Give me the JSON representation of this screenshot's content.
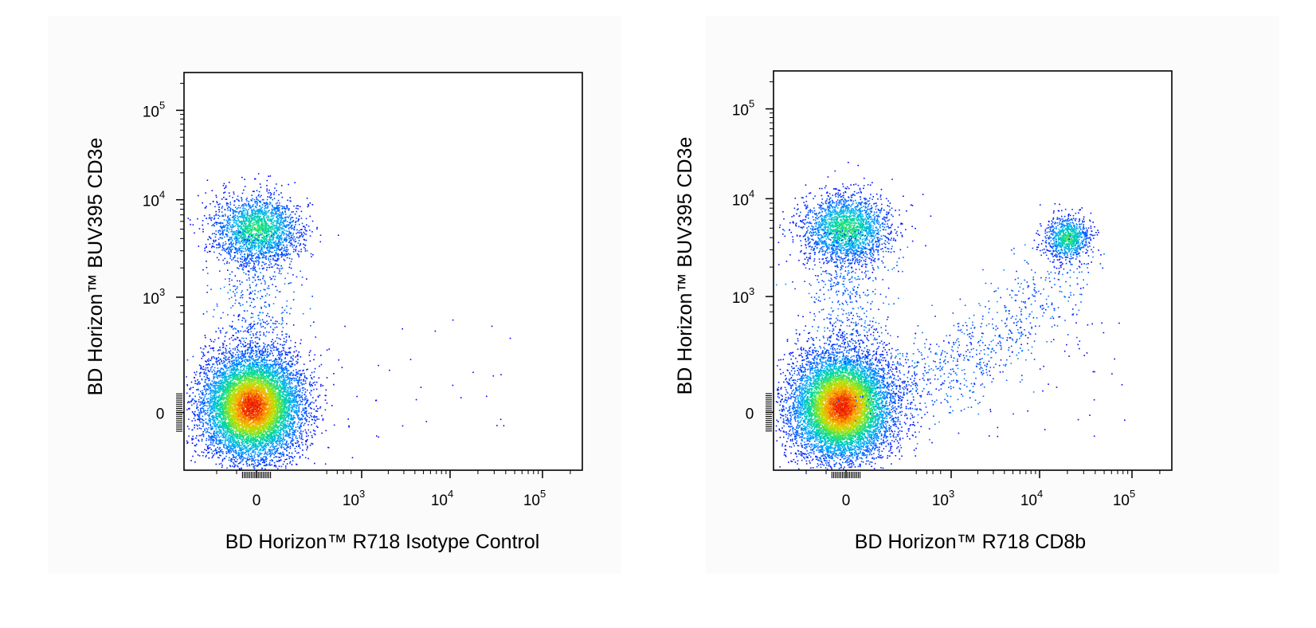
{
  "chart_data": [
    {
      "type": "scatter",
      "title": "",
      "xlabel": "BD Horizon™ R718 Isotype Control",
      "ylabel": "BD Horizon™ BUV395 CD3e",
      "x_scale": "biexponential",
      "y_scale": "biexponential",
      "xlim": [
        -300,
        200000
      ],
      "ylim": [
        -200,
        200000
      ],
      "x_ticks": [
        {
          "base": "0",
          "exp": ""
        },
        {
          "base": "10",
          "exp": "3"
        },
        {
          "base": "10",
          "exp": "4"
        },
        {
          "base": "10",
          "exp": "5"
        }
      ],
      "y_ticks": [
        {
          "base": "0",
          "exp": ""
        },
        {
          "base": "10",
          "exp": "3"
        },
        {
          "base": "10",
          "exp": "4"
        },
        {
          "base": "10",
          "exp": "5"
        }
      ],
      "grid": false,
      "colormap": "density (blue-green-yellow-red)",
      "populations": [
        {
          "x_center": 0,
          "y_center": 0,
          "relative_density": "high"
        },
        {
          "x_center": 0,
          "y_center": 5000,
          "relative_density": "medium"
        }
      ]
    },
    {
      "type": "scatter",
      "title": "",
      "xlabel": "BD Horizon™ R718 CD8b",
      "ylabel": "BD Horizon™ BUV395 CD3e",
      "x_scale": "biexponential",
      "y_scale": "biexponential",
      "xlim": [
        -300,
        200000
      ],
      "ylim": [
        -200,
        200000
      ],
      "x_ticks": [
        {
          "base": "0",
          "exp": ""
        },
        {
          "base": "10",
          "exp": "3"
        },
        {
          "base": "10",
          "exp": "4"
        },
        {
          "base": "10",
          "exp": "5"
        }
      ],
      "y_ticks": [
        {
          "base": "0",
          "exp": ""
        },
        {
          "base": "10",
          "exp": "3"
        },
        {
          "base": "10",
          "exp": "4"
        },
        {
          "base": "10",
          "exp": "5"
        }
      ],
      "grid": false,
      "colormap": "density (blue-green-yellow-red)",
      "populations": [
        {
          "x_center": 0,
          "y_center": 0,
          "relative_density": "high"
        },
        {
          "x_center": 0,
          "y_center": 5000,
          "relative_density": "medium"
        },
        {
          "x_center": 20000,
          "y_center": 4000,
          "relative_density": "medium"
        }
      ]
    }
  ]
}
